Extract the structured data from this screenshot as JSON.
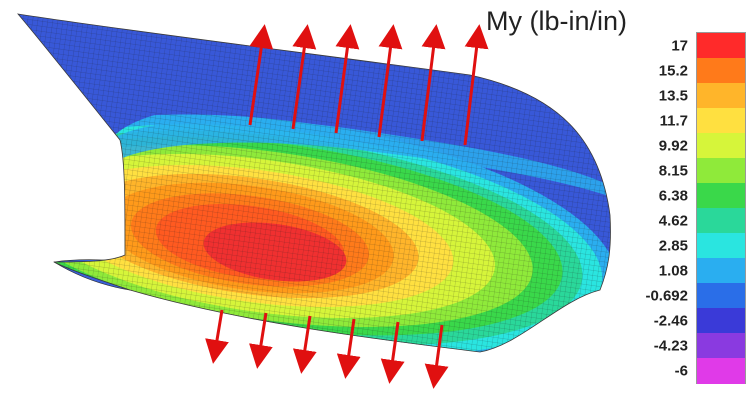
{
  "legend": {
    "title": "My (lb-in/in)",
    "ticks": [
      "17",
      "15.2",
      "13.5",
      "11.7",
      "9.92",
      "8.15",
      "6.38",
      "4.62",
      "2.85",
      "1.08",
      "-0.692",
      "-2.46",
      "-4.23",
      "-6"
    ],
    "colors": [
      "#ff2a2a",
      "#ff7a1a",
      "#ffb52a",
      "#ffe040",
      "#d6f53a",
      "#8fea3a",
      "#3ad84a",
      "#2ad89a",
      "#2ae5e0",
      "#2aaef0",
      "#2a6ee8",
      "#3a3ad8",
      "#8a3ae0",
      "#e03ae8"
    ]
  },
  "colors": {
    "arrow": "#e01010",
    "mesh_line": "#2a2a2a",
    "peak": "#f03030",
    "outer": "#3050d8"
  },
  "arrows_top_count": 6,
  "arrows_bottom_count": 6
}
